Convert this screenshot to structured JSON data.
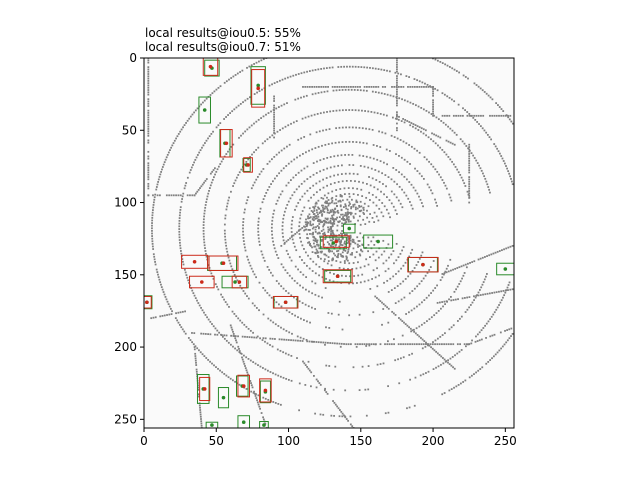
{
  "chart_data": {
    "type": "scatter",
    "title_lines": [
      "local results@iou0.5: 55%",
      "local results@iou0.7: 51%"
    ],
    "xlabel": "",
    "ylabel": "",
    "xlim": [
      0,
      256
    ],
    "ylim": [
      256,
      0
    ],
    "y_inverted": true,
    "xticks": [
      0,
      50,
      100,
      150,
      200,
      250
    ],
    "yticks": [
      0,
      50,
      100,
      150,
      200,
      250
    ],
    "grid": false,
    "background_points_color": "#808080",
    "series": [
      {
        "name": "",
        "color": "#2a8a2a",
        "boxes": [
          {
            "cx": 47,
            "cy": 7,
            "w": 10,
            "h": 11
          },
          {
            "cx": 79,
            "cy": 19,
            "w": 10,
            "h": 26
          },
          {
            "cx": 42,
            "cy": 36,
            "w": 8,
            "h": 18
          },
          {
            "cx": 56,
            "cy": 59,
            "w": 7,
            "h": 19
          },
          {
            "cx": 71,
            "cy": 74,
            "w": 5,
            "h": 9
          },
          {
            "cx": 142,
            "cy": 118,
            "w": 8,
            "h": 6
          },
          {
            "cx": 131,
            "cy": 128,
            "w": 18,
            "h": 8
          },
          {
            "cx": 162,
            "cy": 127,
            "w": 20,
            "h": 9
          },
          {
            "cx": 54,
            "cy": 142,
            "w": 20,
            "h": 10
          },
          {
            "cx": 63,
            "cy": 155,
            "w": 18,
            "h": 8
          },
          {
            "cx": 134,
            "cy": 151,
            "w": 18,
            "h": 8
          },
          {
            "cx": 193,
            "cy": 143,
            "w": 20,
            "h": 10
          },
          {
            "cx": 250,
            "cy": 146,
            "w": 12,
            "h": 8
          },
          {
            "cx": 2,
            "cy": 169,
            "w": 7,
            "h": 9
          },
          {
            "cx": 98,
            "cy": 169,
            "w": 16,
            "h": 8
          },
          {
            "cx": 41,
            "cy": 229,
            "w": 8,
            "h": 20
          },
          {
            "cx": 55,
            "cy": 235,
            "w": 7,
            "h": 14
          },
          {
            "cx": 68,
            "cy": 227,
            "w": 8,
            "h": 14
          },
          {
            "cx": 84,
            "cy": 231,
            "w": 7,
            "h": 15
          },
          {
            "cx": 47,
            "cy": 254,
            "w": 8,
            "h": 4
          },
          {
            "cx": 69,
            "cy": 252,
            "w": 8,
            "h": 9
          },
          {
            "cx": 83,
            "cy": 254,
            "w": 6,
            "h": 5
          }
        ]
      },
      {
        "name": "",
        "color": "#cc2a1a",
        "boxes": [
          {
            "cx": 46,
            "cy": 6,
            "w": 10,
            "h": 12
          },
          {
            "cx": 79,
            "cy": 21,
            "w": 9,
            "h": 26
          },
          {
            "cx": 57,
            "cy": 59,
            "w": 8,
            "h": 19
          },
          {
            "cx": 72,
            "cy": 74,
            "w": 6,
            "h": 10
          },
          {
            "cx": 133,
            "cy": 127,
            "w": 18,
            "h": 8
          },
          {
            "cx": 35,
            "cy": 141,
            "w": 18,
            "h": 9
          },
          {
            "cx": 55,
            "cy": 142,
            "w": 20,
            "h": 10
          },
          {
            "cx": 40,
            "cy": 155,
            "w": 17,
            "h": 8
          },
          {
            "cx": 66,
            "cy": 155,
            "w": 10,
            "h": 8
          },
          {
            "cx": 134,
            "cy": 151,
            "w": 20,
            "h": 9
          },
          {
            "cx": 193,
            "cy": 143,
            "w": 21,
            "h": 10
          },
          {
            "cx": 2,
            "cy": 169,
            "w": 6,
            "h": 8
          },
          {
            "cx": 98,
            "cy": 169,
            "w": 17,
            "h": 8
          },
          {
            "cx": 42,
            "cy": 229,
            "w": 7,
            "h": 16
          },
          {
            "cx": 69,
            "cy": 227,
            "w": 8,
            "h": 15
          },
          {
            "cx": 84,
            "cy": 230,
            "w": 8,
            "h": 16
          }
        ]
      }
    ]
  }
}
